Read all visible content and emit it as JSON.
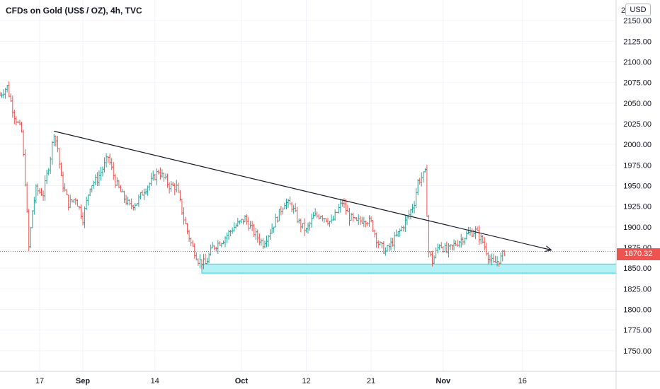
{
  "header": {
    "title": "CFDs on Gold (US$ / OZ), 4h, TVC",
    "currency_button": "USD",
    "top_tick_fragment": "2"
  },
  "current_price": {
    "label": "1870.32",
    "value": 1870.32
  },
  "colors": {
    "up": "#26a69a",
    "down": "#ef5350",
    "trendline": "#131722",
    "support_zone_fill": "#b2f1f5",
    "support_zone_border": "#22d3e6",
    "grid": "#f0f3fa",
    "price_line": "#ef5350"
  },
  "chart_data": {
    "type": "ohlc",
    "ylim": [
      1725,
      2175
    ],
    "x_ticks": [
      {
        "label": "17",
        "x": 4,
        "bold": false
      },
      {
        "label": "Sep",
        "x": 16,
        "bold": true
      },
      {
        "label": "14",
        "x": 36,
        "bold": false
      },
      {
        "label": "Oct",
        "x": 60,
        "bold": true
      },
      {
        "label": "12",
        "x": 78,
        "bold": false
      },
      {
        "label": "21",
        "x": 96,
        "bold": false
      },
      {
        "label": "Nov",
        "x": 116,
        "bold": true
      },
      {
        "label": "16",
        "x": 138,
        "bold": false
      }
    ],
    "y_ticks": [
      {
        "label": "2150.00",
        "value": 2150
      },
      {
        "label": "2125.00",
        "value": 2125
      },
      {
        "label": "2100.00",
        "value": 2100
      },
      {
        "label": "2075.00",
        "value": 2075
      },
      {
        "label": "2050.00",
        "value": 2050
      },
      {
        "label": "2025.00",
        "value": 2025
      },
      {
        "label": "2000.00",
        "value": 2000
      },
      {
        "label": "1975.00",
        "value": 1975
      },
      {
        "label": "1950.00",
        "value": 1950
      },
      {
        "label": "1925.00",
        "value": 1925
      },
      {
        "label": "1900.00",
        "value": 1900
      },
      {
        "label": "1875.00",
        "value": 1875
      },
      {
        "label": "1850.00",
        "value": 1850
      },
      {
        "label": "1825.00",
        "value": 1825
      },
      {
        "label": "1800.00",
        "value": 1800
      },
      {
        "label": "1775.00",
        "value": 1775
      },
      {
        "label": "1750.00",
        "value": 1750
      }
    ],
    "x_range": [
      -7,
      164
    ],
    "close_anchors": [
      [
        -7,
        2060
      ],
      [
        -5,
        2070
      ],
      [
        -4,
        2052
      ],
      [
        -3,
        2035
      ],
      [
        -1,
        2015
      ],
      [
        0,
        1955
      ],
      [
        1,
        1875
      ],
      [
        2,
        1920
      ],
      [
        3,
        1945
      ],
      [
        5,
        1940
      ],
      [
        7,
        1985
      ],
      [
        8,
        2015
      ],
      [
        9,
        1995
      ],
      [
        10,
        1958
      ],
      [
        12,
        1928
      ],
      [
        14,
        1935
      ],
      [
        16,
        1910
      ],
      [
        18,
        1950
      ],
      [
        20,
        1958
      ],
      [
        22,
        1975
      ],
      [
        23,
        1985
      ],
      [
        25,
        1955
      ],
      [
        27,
        1938
      ],
      [
        29,
        1925
      ],
      [
        31,
        1930
      ],
      [
        33,
        1945
      ],
      [
        35,
        1955
      ],
      [
        37,
        1968
      ],
      [
        40,
        1950
      ],
      [
        42,
        1948
      ],
      [
        44,
        1910
      ],
      [
        46,
        1880
      ],
      [
        48,
        1860
      ],
      [
        50,
        1855
      ],
      [
        52,
        1875
      ],
      [
        55,
        1885
      ],
      [
        58,
        1900
      ],
      [
        61,
        1910
      ],
      [
        64,
        1890
      ],
      [
        66,
        1880
      ],
      [
        68,
        1895
      ],
      [
        70,
        1912
      ],
      [
        72,
        1930
      ],
      [
        74,
        1925
      ],
      [
        76,
        1905
      ],
      [
        78,
        1895
      ],
      [
        80,
        1912
      ],
      [
        82,
        1915
      ],
      [
        85,
        1905
      ],
      [
        87,
        1922
      ],
      [
        88,
        1930
      ],
      [
        90,
        1912
      ],
      [
        92,
        1905
      ],
      [
        94,
        1910
      ],
      [
        96,
        1905
      ],
      [
        98,
        1880
      ],
      [
        100,
        1870
      ],
      [
        102,
        1882
      ],
      [
        104,
        1895
      ],
      [
        106,
        1910
      ],
      [
        108,
        1930
      ],
      [
        109,
        1955
      ],
      [
        111,
        1965
      ],
      [
        112,
        1870
      ],
      [
        113,
        1858
      ],
      [
        115,
        1880
      ],
      [
        117,
        1870
      ],
      [
        119,
        1878
      ],
      [
        121,
        1885
      ],
      [
        123,
        1892
      ],
      [
        125,
        1895
      ],
      [
        127,
        1882
      ],
      [
        129,
        1860
      ],
      [
        130,
        1855
      ],
      [
        132,
        1862
      ],
      [
        133,
        1870
      ]
    ],
    "trendline": {
      "start": {
        "x": 8,
        "y": 2016
      },
      "end": {
        "x": 146,
        "y": 1872
      }
    },
    "support_zone": {
      "x_start": 49,
      "x_end": 164,
      "y_low": 1844,
      "y_high": 1855
    }
  }
}
